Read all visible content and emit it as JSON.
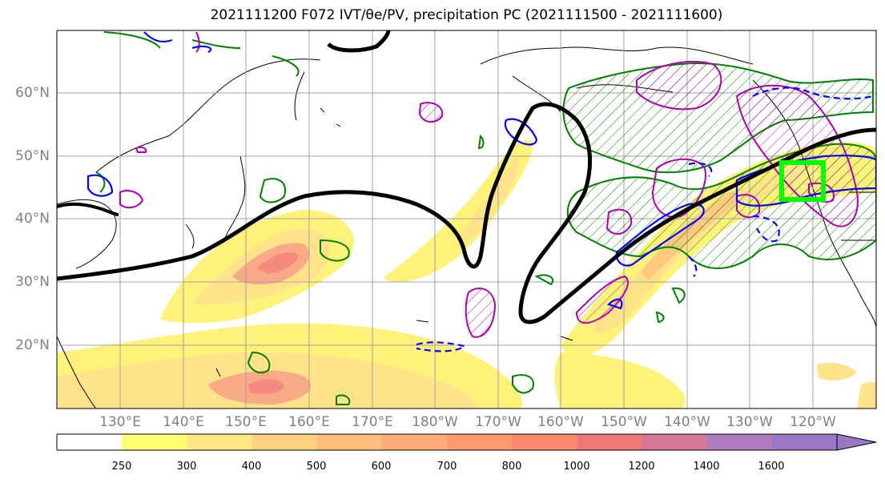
{
  "title": "2021111200 F072 IVT/θe/PV, precipitation PC (2021111500 - 2021111600)",
  "map": {
    "lat_labels": [
      "60°N",
      "50°N",
      "40°N",
      "30°N",
      "20°N"
    ],
    "lon_labels": [
      "130°E",
      "140°E",
      "150°E",
      "160°E",
      "170°E",
      "180°W",
      "170°W",
      "160°W",
      "150°W",
      "140°W",
      "130°W",
      "120°W"
    ]
  },
  "colorbar": {
    "levels": [
      "250",
      "300",
      "400",
      "500",
      "600",
      "700",
      "800",
      "1000",
      "1200",
      "1400",
      "1600"
    ],
    "colors": [
      "#ffffff",
      "#ffff70",
      "#ffe880",
      "#ffd080",
      "#ffbd7c",
      "#ffaa78",
      "#ff9a74",
      "#ff8870",
      "#f07878",
      "#d87898",
      "#b07cc0",
      "#9a78c8"
    ]
  },
  "legend_colors": {
    "ivt_fill_low": "#fff27a",
    "ivt_fill_mid": "#ffc97e",
    "ivt_fill_high": "#f58b80",
    "theta_contour": "#000000",
    "pv_contour": "#0000ff",
    "precip_pc_contour": "#b000b0",
    "green_contour": "#008000",
    "target_box": "#00ff00"
  }
}
